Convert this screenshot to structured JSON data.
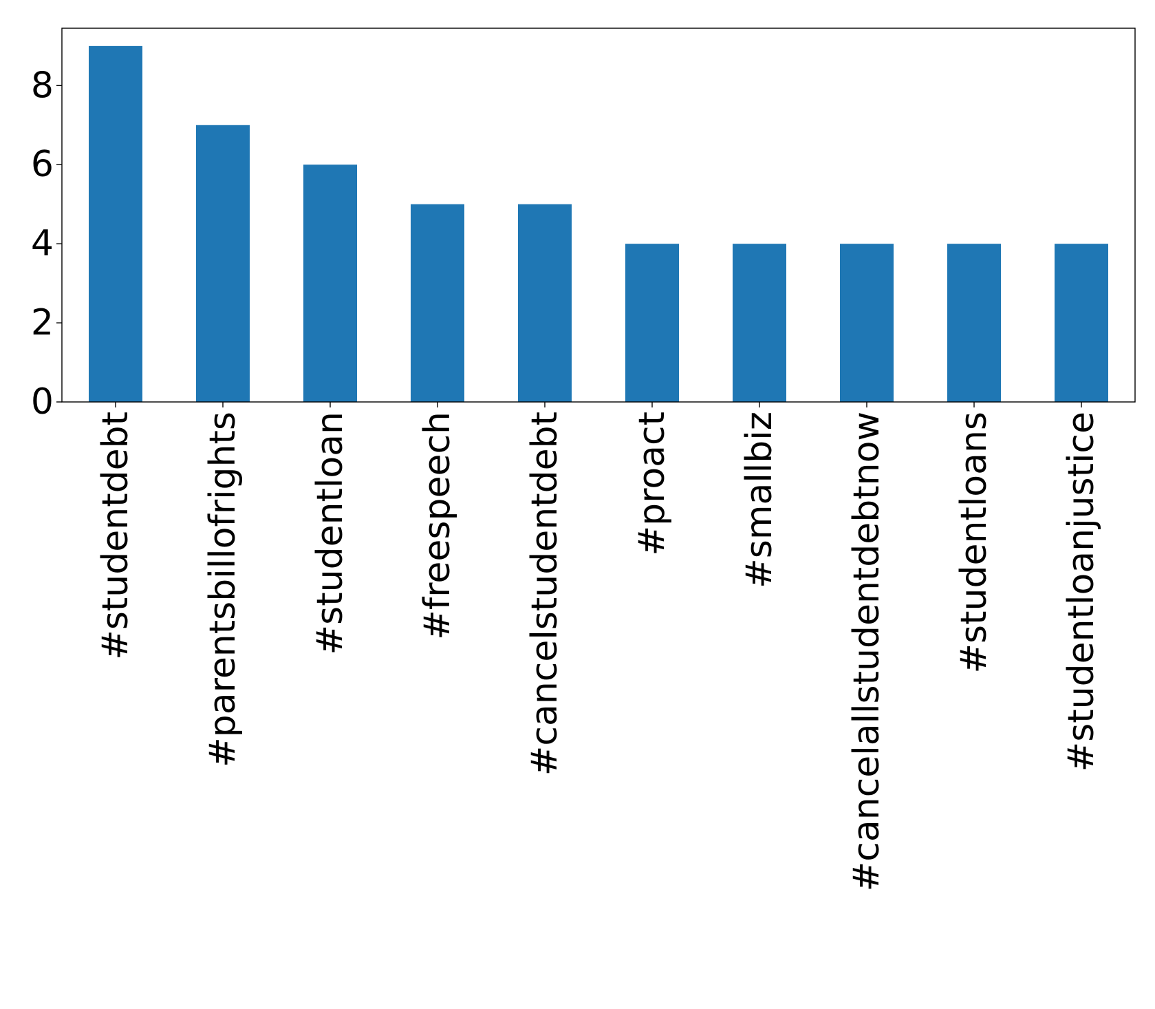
{
  "chart_data": {
    "type": "bar",
    "title": "",
    "xlabel": "",
    "ylabel": "",
    "categories": [
      "#studentdebt",
      "#parentsbillofrights",
      "#studentloan",
      "#freespeech",
      "#cancelstudentdebt",
      "#proact",
      "#smallbiz",
      "#cancelallstudentdebtnow",
      "#studentloans",
      "#studentloanjustice"
    ],
    "values": [
      9,
      7,
      6,
      5,
      5,
      4,
      4,
      4,
      4,
      4
    ],
    "ylim": [
      0,
      9.45
    ],
    "yticks": [
      0,
      2,
      4,
      6,
      8
    ],
    "ytick_labels": [
      "0",
      "2",
      "4",
      "6",
      "8"
    ],
    "bar_color": "#1f77b4",
    "grid": false,
    "legend": "none"
  }
}
